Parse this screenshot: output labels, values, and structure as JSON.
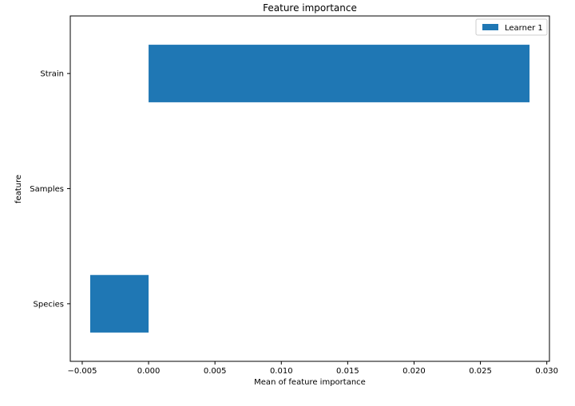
{
  "chart_data": {
    "type": "bar",
    "orientation": "horizontal",
    "title": "Feature importance",
    "xlabel": "Mean of feature importance",
    "ylabel": "feature",
    "categories": [
      "Species",
      "Samples ",
      "Strain"
    ],
    "series": [
      {
        "name": "Learner 1",
        "color": "#1f77b4",
        "values": [
          -0.0044,
          0.0,
          0.0287
        ]
      }
    ],
    "xlim": [
      -0.0059,
      0.0302
    ],
    "xticks": [
      -0.005,
      0.0,
      0.005,
      0.01,
      0.015,
      0.02,
      0.025,
      0.03
    ],
    "xtick_labels": [
      "−0.005",
      "0.000",
      "0.005",
      "0.010",
      "0.015",
      "0.020",
      "0.025",
      "0.030"
    ],
    "grid": false,
    "legend_position": "top-right"
  }
}
